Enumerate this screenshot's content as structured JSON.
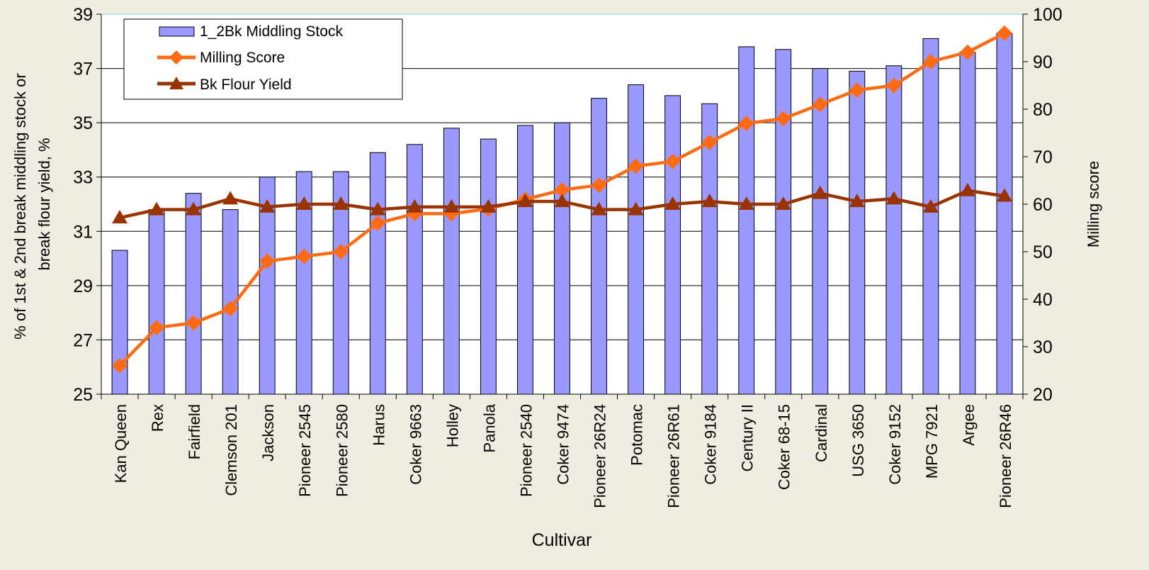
{
  "chart_data": {
    "type": "bar",
    "xlabel": "Cultivar",
    "ylabel_left": "% of 1st & 2nd break middling stock or break flour yield, %",
    "ylabel_left_lines": [
      "% of 1st & 2nd break middling stock or",
      "break flour yield, %"
    ],
    "ylabel_right": "Milling score",
    "y_left": {
      "min": 25,
      "max": 39,
      "ticks": [
        25,
        27,
        29,
        31,
        33,
        35,
        37,
        39
      ]
    },
    "y_right": {
      "min": 20,
      "max": 100,
      "ticks": [
        20,
        30,
        40,
        50,
        60,
        70,
        80,
        90,
        100
      ]
    },
    "grid": "horizontal",
    "legend_position": "top-left",
    "categories": [
      "Kan Queen",
      "Rex",
      "Fairfield",
      "Clemson 201",
      "Jackson",
      "Pioneer 2545",
      "Pioneer 2580",
      "Harus",
      "Coker 9663",
      "Holley",
      "Panola",
      "Pioneer 2540",
      "Coker 9474",
      "Pioneer 26R24",
      "Potomac",
      "Pioneer 26R61",
      "Coker 9184",
      "Century II",
      "Coker 68-15",
      "Cardinal",
      "USG 3650",
      "Coker 9152",
      "MPG 7921",
      "Argee",
      "Pioneer 26R46"
    ],
    "series": [
      {
        "name": "1_2Bk Middling Stock",
        "type": "bar",
        "axis": "left",
        "color": "#9999ff",
        "values": [
          30.3,
          31.8,
          32.4,
          31.8,
          33.0,
          33.2,
          33.2,
          33.9,
          34.2,
          34.8,
          34.4,
          34.9,
          35.0,
          35.9,
          36.4,
          36.0,
          35.7,
          37.8,
          37.7,
          37.0,
          36.9,
          37.1,
          38.1,
          37.6,
          38.3
        ]
      },
      {
        "name": "Milling Score",
        "type": "line",
        "marker": "diamond",
        "axis": "right",
        "color": "#ff6a13",
        "values": [
          26,
          34,
          35,
          38,
          48,
          49,
          50,
          56,
          58,
          58,
          59,
          61,
          63,
          64,
          68,
          69,
          73,
          77,
          78,
          81,
          84,
          85,
          90,
          92,
          96
        ]
      },
      {
        "name": "Bk Flour Yield",
        "type": "line",
        "marker": "triangle",
        "axis": "left",
        "color": "#993300",
        "values": [
          31.5,
          31.8,
          31.8,
          32.2,
          31.9,
          32.0,
          32.0,
          31.8,
          31.9,
          31.9,
          31.9,
          32.1,
          32.1,
          31.8,
          31.8,
          32.0,
          32.1,
          32.0,
          32.0,
          32.4,
          32.1,
          32.2,
          31.9,
          32.5,
          32.3
        ]
      }
    ]
  }
}
